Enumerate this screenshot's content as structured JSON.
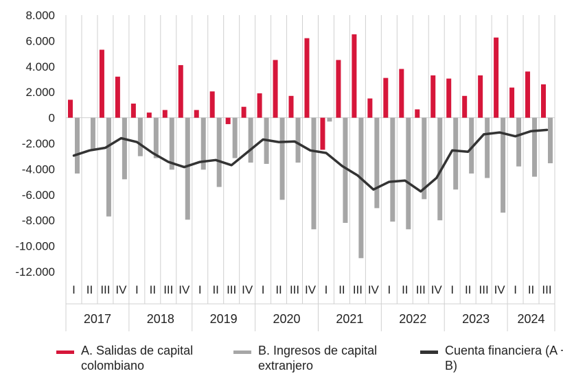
{
  "chart_data": {
    "type": "bar",
    "categories": [
      "2017-I",
      "2017-II",
      "2017-III",
      "2017-IV",
      "2018-I",
      "2018-II",
      "2018-III",
      "2018-IV",
      "2019-I",
      "2019-II",
      "2019-III",
      "2019-IV",
      "2020-I",
      "2020-II",
      "2020-III",
      "2020-IV",
      "2021-I",
      "2021-II",
      "2021-III",
      "2021-IV",
      "2022-I",
      "2022-II",
      "2022-III",
      "2022-IV",
      "2023-I",
      "2023-II",
      "2023-III",
      "2023-IV",
      "2024-I",
      "2024-II",
      "2024-III"
    ],
    "quarter_labels": [
      "I",
      "II",
      "III",
      "IV",
      "I",
      "II",
      "III",
      "IV",
      "I",
      "II",
      "III",
      "IV",
      "I",
      "II",
      "III",
      "IV",
      "I",
      "II",
      "III",
      "IV",
      "I",
      "II",
      "III",
      "IV",
      "I",
      "II",
      "III",
      "IV",
      "I",
      "II",
      "III"
    ],
    "years": [
      "2017",
      "2018",
      "2019",
      "2020",
      "2021",
      "2022",
      "2023",
      "2024"
    ],
    "series": [
      {
        "name": "A. Salidas de capital colombiano",
        "type": "bar",
        "color": "#d6163a",
        "values": [
          1400,
          0,
          5300,
          3200,
          1100,
          400,
          600,
          4100,
          600,
          2050,
          -500,
          850,
          1900,
          4500,
          1700,
          6200,
          -2500,
          4500,
          6500,
          1500,
          3100,
          3800,
          650,
          3300,
          3050,
          1700,
          3300,
          6250,
          2350,
          3600,
          2600
        ]
      },
      {
        "name": "B. Ingresos de capital extranjero",
        "type": "bar",
        "color": "#a6a6a6",
        "values": [
          -4350,
          -2500,
          -7700,
          -4800,
          -3000,
          -3150,
          -4050,
          -7950,
          -4050,
          -5400,
          -3150,
          -3500,
          -3600,
          -6400,
          -3500,
          -8700,
          -300,
          -8200,
          -10950,
          -7050,
          -8100,
          -8700,
          -6350,
          -8000,
          -5600,
          -4350,
          -4700,
          -7400,
          -3800,
          -4600,
          -3550
        ]
      },
      {
        "name": "Cuenta financiera (A + B)",
        "type": "line",
        "color": "#333333",
        "values": [
          -2950,
          -2550,
          -2350,
          -1600,
          -1900,
          -2750,
          -3450,
          -3850,
          -3450,
          -3300,
          -3700,
          -2700,
          -1700,
          -1900,
          -1850,
          -2550,
          -2750,
          -3750,
          -4500,
          -5600,
          -5000,
          -4900,
          -5750,
          -4700,
          -2550,
          -2650,
          -1300,
          -1150,
          -1450,
          -1050,
          -950
        ]
      }
    ],
    "yticks": [
      "8.000",
      "6.000",
      "4.000",
      "2.000",
      "0",
      "-2.000",
      "-4.000",
      "-6.000",
      "-8.000",
      "-10.000",
      "-12.000"
    ],
    "ylim": [
      -12000,
      8000
    ],
    "xlabel": "",
    "ylabel": "",
    "grid": "vertical",
    "legend_position": "bottom"
  }
}
